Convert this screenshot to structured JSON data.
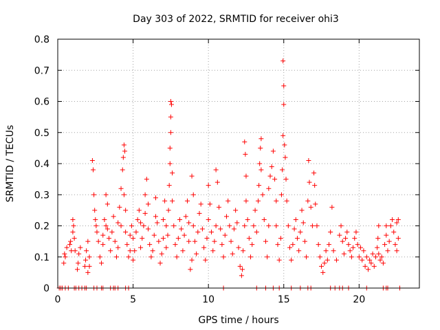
{
  "chart_data": {
    "type": "scatter",
    "title": "Day 303 of 2022, SRMTID for receiver ohi3",
    "xlabel": "GPS time / hours",
    "ylabel": "SRMTID / TECUs",
    "xlim": [
      0,
      24
    ],
    "ylim": [
      0,
      0.8
    ],
    "xticks": [
      0,
      5,
      10,
      15,
      20
    ],
    "xtick_labels": [
      "0",
      "5",
      "10",
      "15",
      "20"
    ],
    "yticks": [
      0,
      0.1,
      0.2,
      0.3,
      0.4,
      0.5,
      0.6,
      0.7,
      0.8
    ],
    "ytick_labels": [
      "0",
      "0.1",
      "0.2",
      "0.3",
      "0.4",
      "0.5",
      "0.6",
      "0.7",
      "0.8"
    ],
    "grid": true,
    "marker": "plus",
    "color": "#ff0000",
    "series": [
      {
        "name": "SRMTID",
        "points": [
          [
            0.1,
            0
          ],
          [
            0.2,
            0
          ],
          [
            0.3,
            0
          ],
          [
            0.5,
            0
          ],
          [
            0.7,
            0
          ],
          [
            1.1,
            0
          ],
          [
            1.2,
            0
          ],
          [
            1.4,
            0
          ],
          [
            1.6,
            0
          ],
          [
            1.8,
            0
          ],
          [
            1.9,
            0
          ],
          [
            2.4,
            0
          ],
          [
            2.6,
            0
          ],
          [
            2.9,
            0
          ],
          [
            3.0,
            0
          ],
          [
            3.5,
            0
          ],
          [
            3.7,
            0
          ],
          [
            3.8,
            0
          ],
          [
            4.0,
            0
          ],
          [
            4.5,
            0
          ],
          [
            4.7,
            0
          ],
          [
            11.0,
            0
          ],
          [
            13.2,
            0
          ],
          [
            13.8,
            0
          ],
          [
            14.3,
            0
          ],
          [
            14.7,
            0
          ],
          [
            15.5,
            0
          ],
          [
            16.1,
            0
          ],
          [
            16.6,
            0
          ],
          [
            16.8,
            0
          ],
          [
            18.1,
            0
          ],
          [
            18.4,
            0
          ],
          [
            18.7,
            0
          ],
          [
            18.9,
            0
          ],
          [
            19.3,
            0
          ],
          [
            20.5,
            0
          ],
          [
            21.6,
            0
          ],
          [
            21.8,
            0
          ],
          [
            21.9,
            0
          ],
          [
            22.7,
            0
          ],
          [
            0.4,
            0.08
          ],
          [
            0.45,
            0.11
          ],
          [
            0.5,
            0.1
          ],
          [
            0.6,
            0.13
          ],
          [
            0.8,
            0.14
          ],
          [
            0.85,
            0.15
          ],
          [
            0.9,
            0.12
          ],
          [
            1.0,
            0.18
          ],
          [
            1.0,
            0.22
          ],
          [
            1.05,
            0.2
          ],
          [
            1.1,
            0.16
          ],
          [
            1.15,
            0.12
          ],
          [
            1.3,
            0.06
          ],
          [
            1.35,
            0.08
          ],
          [
            1.4,
            0.11
          ],
          [
            1.5,
            0.13
          ],
          [
            1.8,
            0.07
          ],
          [
            1.85,
            0.09
          ],
          [
            1.9,
            0.12
          ],
          [
            2.0,
            0.15
          ],
          [
            2.0,
            0.05
          ],
          [
            2.1,
            0.07
          ],
          [
            2.1,
            0.1
          ],
          [
            2.3,
            0.41
          ],
          [
            2.35,
            0.38
          ],
          [
            2.4,
            0.3
          ],
          [
            2.45,
            0.25
          ],
          [
            2.5,
            0.22
          ],
          [
            2.55,
            0.2
          ],
          [
            2.6,
            0.18
          ],
          [
            2.7,
            0.15
          ],
          [
            2.8,
            0.1
          ],
          [
            2.9,
            0.08
          ],
          [
            3.0,
            0.14
          ],
          [
            3.0,
            0.17
          ],
          [
            3.1,
            0.22
          ],
          [
            3.2,
            0.2
          ],
          [
            3.2,
            0.3
          ],
          [
            3.3,
            0.27
          ],
          [
            3.3,
            0.19
          ],
          [
            3.4,
            0.16
          ],
          [
            3.5,
            0.12
          ],
          [
            3.6,
            0.18
          ],
          [
            3.7,
            0.23
          ],
          [
            3.8,
            0.15
          ],
          [
            3.9,
            0.1
          ],
          [
            4.0,
            0.13
          ],
          [
            4.0,
            0.21
          ],
          [
            4.1,
            0.26
          ],
          [
            4.2,
            0.2
          ],
          [
            4.2,
            0.32
          ],
          [
            4.3,
            0.38
          ],
          [
            4.35,
            0.42
          ],
          [
            4.4,
            0.46
          ],
          [
            4.45,
            0.44
          ],
          [
            4.4,
            0.3
          ],
          [
            4.5,
            0.25
          ],
          [
            4.5,
            0.18
          ],
          [
            4.6,
            0.14
          ],
          [
            4.7,
            0.1
          ],
          [
            4.8,
            0.12
          ],
          [
            4.8,
            0.17
          ],
          [
            4.9,
            0.2
          ],
          [
            5.0,
            0.16
          ],
          [
            5.0,
            0.09
          ],
          [
            5.1,
            0.12
          ],
          [
            5.2,
            0.18
          ],
          [
            5.3,
            0.22
          ],
          [
            5.4,
            0.25
          ],
          [
            5.5,
            0.21
          ],
          [
            5.5,
            0.13
          ],
          [
            5.6,
            0.16
          ],
          [
            5.7,
            0.2
          ],
          [
            5.8,
            0.24
          ],
          [
            5.8,
            0.3
          ],
          [
            5.9,
            0.35
          ],
          [
            6.0,
            0.27
          ],
          [
            6.0,
            0.19
          ],
          [
            6.1,
            0.14
          ],
          [
            6.2,
            0.1
          ],
          [
            6.3,
            0.12
          ],
          [
            6.4,
            0.17
          ],
          [
            6.5,
            0.23
          ],
          [
            6.5,
            0.29
          ],
          [
            6.6,
            0.21
          ],
          [
            6.7,
            0.15
          ],
          [
            6.8,
            0.08
          ],
          [
            6.9,
            0.11
          ],
          [
            7.0,
            0.16
          ],
          [
            7.0,
            0.22
          ],
          [
            7.1,
            0.28
          ],
          [
            7.2,
            0.2
          ],
          [
            7.2,
            0.13
          ],
          [
            7.3,
            0.17
          ],
          [
            7.35,
            0.25
          ],
          [
            7.4,
            0.33
          ],
          [
            7.45,
            0.4
          ],
          [
            7.45,
            0.45
          ],
          [
            7.5,
            0.5
          ],
          [
            7.5,
            0.55
          ],
          [
            7.5,
            0.6
          ],
          [
            7.55,
            0.59
          ],
          [
            7.6,
            0.37
          ],
          [
            7.6,
            0.28
          ],
          [
            7.7,
            0.2
          ],
          [
            7.8,
            0.14
          ],
          [
            7.9,
            0.1
          ],
          [
            8.0,
            0.16
          ],
          [
            8.1,
            0.22
          ],
          [
            8.2,
            0.19
          ],
          [
            8.3,
            0.12
          ],
          [
            8.4,
            0.17
          ],
          [
            8.5,
            0.23
          ],
          [
            8.6,
            0.28
          ],
          [
            8.7,
            0.21
          ],
          [
            8.7,
            0.15
          ],
          [
            8.8,
            0.06
          ],
          [
            8.9,
            0.09
          ],
          [
            8.9,
            0.36
          ],
          [
            9.0,
            0.3
          ],
          [
            9.0,
            0.2
          ],
          [
            9.1,
            0.15
          ],
          [
            9.2,
            0.11
          ],
          [
            9.3,
            0.18
          ],
          [
            9.4,
            0.24
          ],
          [
            9.5,
            0.27
          ],
          [
            9.6,
            0.19
          ],
          [
            9.7,
            0.13
          ],
          [
            9.8,
            0.09
          ],
          [
            9.9,
            0.16
          ],
          [
            10.0,
            0.22
          ],
          [
            10.0,
            0.33
          ],
          [
            10.1,
            0.27
          ],
          [
            10.2,
            0.18
          ],
          [
            10.3,
            0.12
          ],
          [
            10.4,
            0.15
          ],
          [
            10.5,
            0.2
          ],
          [
            10.5,
            0.38
          ],
          [
            10.6,
            0.34
          ],
          [
            10.7,
            0.26
          ],
          [
            10.8,
            0.19
          ],
          [
            10.9,
            0.14
          ],
          [
            11.0,
            0.1
          ],
          [
            11.1,
            0.17
          ],
          [
            11.2,
            0.23
          ],
          [
            11.3,
            0.28
          ],
          [
            11.4,
            0.2
          ],
          [
            11.5,
            0.15
          ],
          [
            11.6,
            0.11
          ],
          [
            11.7,
            0.19
          ],
          [
            11.8,
            0.25
          ],
          [
            11.9,
            0.21
          ],
          [
            12.0,
            0.13
          ],
          [
            12.1,
            0.07
          ],
          [
            12.2,
            0.04
          ],
          [
            12.25,
            0.06
          ],
          [
            12.3,
            0.12
          ],
          [
            12.4,
            0.2
          ],
          [
            12.4,
            0.47
          ],
          [
            12.45,
            0.43
          ],
          [
            12.5,
            0.36
          ],
          [
            12.5,
            0.28
          ],
          [
            12.6,
            0.22
          ],
          [
            12.7,
            0.16
          ],
          [
            12.8,
            0.1
          ],
          [
            12.9,
            0.14
          ],
          [
            13.0,
            0.2
          ],
          [
            13.1,
            0.25
          ],
          [
            13.2,
            0.18
          ],
          [
            13.3,
            0.28
          ],
          [
            13.35,
            0.33
          ],
          [
            13.4,
            0.4
          ],
          [
            13.45,
            0.45
          ],
          [
            13.5,
            0.48
          ],
          [
            13.5,
            0.38
          ],
          [
            13.6,
            0.3
          ],
          [
            13.7,
            0.22
          ],
          [
            13.8,
            0.15
          ],
          [
            13.9,
            0.1
          ],
          [
            14.0,
            0.2
          ],
          [
            14.0,
            0.32
          ],
          [
            14.1,
            0.36
          ],
          [
            14.2,
            0.39
          ],
          [
            14.3,
            0.44
          ],
          [
            14.4,
            0.35
          ],
          [
            14.5,
            0.28
          ],
          [
            14.5,
            0.2
          ],
          [
            14.6,
            0.14
          ],
          [
            14.7,
            0.09
          ],
          [
            14.8,
            0.16
          ],
          [
            14.85,
            0.3
          ],
          [
            14.9,
            0.38
          ],
          [
            14.95,
            0.49
          ],
          [
            14.95,
            0.73
          ],
          [
            15.0,
            0.65
          ],
          [
            15.0,
            0.59
          ],
          [
            15.05,
            0.46
          ],
          [
            15.1,
            0.42
          ],
          [
            15.15,
            0.35
          ],
          [
            15.2,
            0.28
          ],
          [
            15.3,
            0.2
          ],
          [
            15.4,
            0.13
          ],
          [
            15.5,
            0.09
          ],
          [
            15.6,
            0.14
          ],
          [
            15.7,
            0.19
          ],
          [
            15.8,
            0.22
          ],
          [
            15.9,
            0.16
          ],
          [
            16.0,
            0.12
          ],
          [
            16.1,
            0.18
          ],
          [
            16.2,
            0.25
          ],
          [
            16.3,
            0.21
          ],
          [
            16.4,
            0.15
          ],
          [
            16.5,
            0.1
          ],
          [
            16.6,
            0.28
          ],
          [
            16.65,
            0.41
          ],
          [
            16.7,
            0.34
          ],
          [
            16.8,
            0.26
          ],
          [
            16.9,
            0.2
          ],
          [
            17.0,
            0.37
          ],
          [
            17.05,
            0.33
          ],
          [
            17.1,
            0.27
          ],
          [
            17.2,
            0.2
          ],
          [
            17.3,
            0.14
          ],
          [
            17.4,
            0.1
          ],
          [
            17.5,
            0.07
          ],
          [
            17.6,
            0.05
          ],
          [
            17.7,
            0.08
          ],
          [
            17.8,
            0.12
          ],
          [
            17.9,
            0.09
          ],
          [
            18.0,
            0.14
          ],
          [
            18.1,
            0.18
          ],
          [
            18.2,
            0.26
          ],
          [
            18.3,
            0.12
          ],
          [
            18.5,
            0.09
          ],
          [
            18.7,
            0.17
          ],
          [
            18.8,
            0.2
          ],
          [
            18.9,
            0.15
          ],
          [
            19.0,
            0.11
          ],
          [
            19.1,
            0.16
          ],
          [
            19.2,
            0.18
          ],
          [
            19.3,
            0.14
          ],
          [
            19.4,
            0.12
          ],
          [
            19.5,
            0.1
          ],
          [
            19.6,
            0.13
          ],
          [
            19.7,
            0.16
          ],
          [
            19.8,
            0.18
          ],
          [
            19.9,
            0.14
          ],
          [
            20.0,
            0.1
          ],
          [
            20.1,
            0.13
          ],
          [
            20.2,
            0.09
          ],
          [
            20.3,
            0.12
          ],
          [
            20.4,
            0.07
          ],
          [
            20.5,
            0.1
          ],
          [
            20.6,
            0.06
          ],
          [
            20.7,
            0.09
          ],
          [
            20.8,
            0.08
          ],
          [
            20.9,
            0.11
          ],
          [
            21.0,
            0.07
          ],
          [
            21.1,
            0.1
          ],
          [
            21.2,
            0.13
          ],
          [
            21.25,
            0.16
          ],
          [
            21.3,
            0.2
          ],
          [
            21.3,
            0.11
          ],
          [
            21.4,
            0.09
          ],
          [
            21.5,
            0.1
          ],
          [
            21.6,
            0.08
          ],
          [
            21.7,
            0.14
          ],
          [
            21.8,
            0.17
          ],
          [
            21.8,
            0.2
          ],
          [
            21.9,
            0.12
          ],
          [
            22.0,
            0.15
          ],
          [
            22.1,
            0.2
          ],
          [
            22.2,
            0.22
          ],
          [
            22.3,
            0.18
          ],
          [
            22.4,
            0.14
          ],
          [
            22.5,
            0.21
          ],
          [
            22.5,
            0.12
          ],
          [
            22.6,
            0.16
          ],
          [
            22.6,
            0.22
          ]
        ]
      }
    ]
  }
}
